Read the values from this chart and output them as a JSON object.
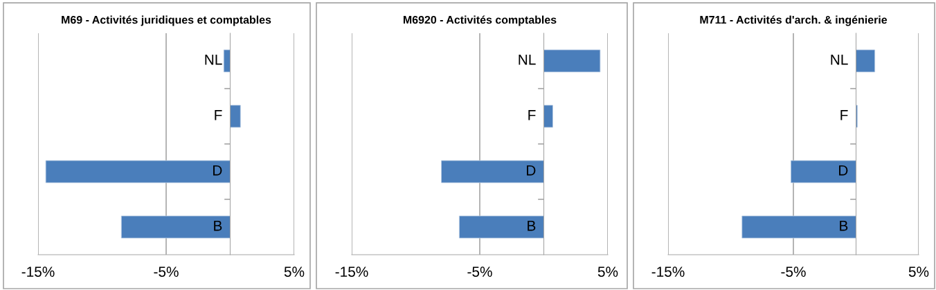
{
  "chart_data": [
    {
      "type": "bar",
      "orientation": "horizontal",
      "title": "M69 - Activités juridiques et comptables",
      "categories": [
        "NL",
        "F",
        "D",
        "B"
      ],
      "values": [
        -0.5,
        0.8,
        -14.4,
        -8.5
      ],
      "color": "#4a7ebb",
      "xlim": [
        -15,
        5
      ],
      "xticks": [
        {
          "value": -15,
          "label": "-15%"
        },
        {
          "value": -5,
          "label": "-5%"
        },
        {
          "value": 5,
          "label": "5%"
        }
      ],
      "grid": "x",
      "legend": false
    },
    {
      "type": "bar",
      "orientation": "horizontal",
      "title": "M6920 - Activités comptables",
      "categories": [
        "NL",
        "F",
        "D",
        "B"
      ],
      "values": [
        4.4,
        0.7,
        -8.0,
        -6.6
      ],
      "color": "#4a7ebb",
      "xlim": [
        -15,
        5
      ],
      "xticks": [
        {
          "value": -15,
          "label": "-15%"
        },
        {
          "value": -5,
          "label": "-5%"
        },
        {
          "value": 5,
          "label": "5%"
        }
      ],
      "grid": "x",
      "legend": false
    },
    {
      "type": "bar",
      "orientation": "horizontal",
      "title": "M711 - Activités d'arch. & ingénierie",
      "categories": [
        "NL",
        "F",
        "D",
        "B"
      ],
      "values": [
        1.5,
        0.1,
        -5.2,
        -9.1
      ],
      "color": "#4a7ebb",
      "xlim": [
        -15,
        5
      ],
      "xticks": [
        {
          "value": -15,
          "label": "-15%"
        },
        {
          "value": -5,
          "label": "-5%"
        },
        {
          "value": 5,
          "label": "5%"
        }
      ],
      "grid": "x",
      "legend": false
    }
  ]
}
